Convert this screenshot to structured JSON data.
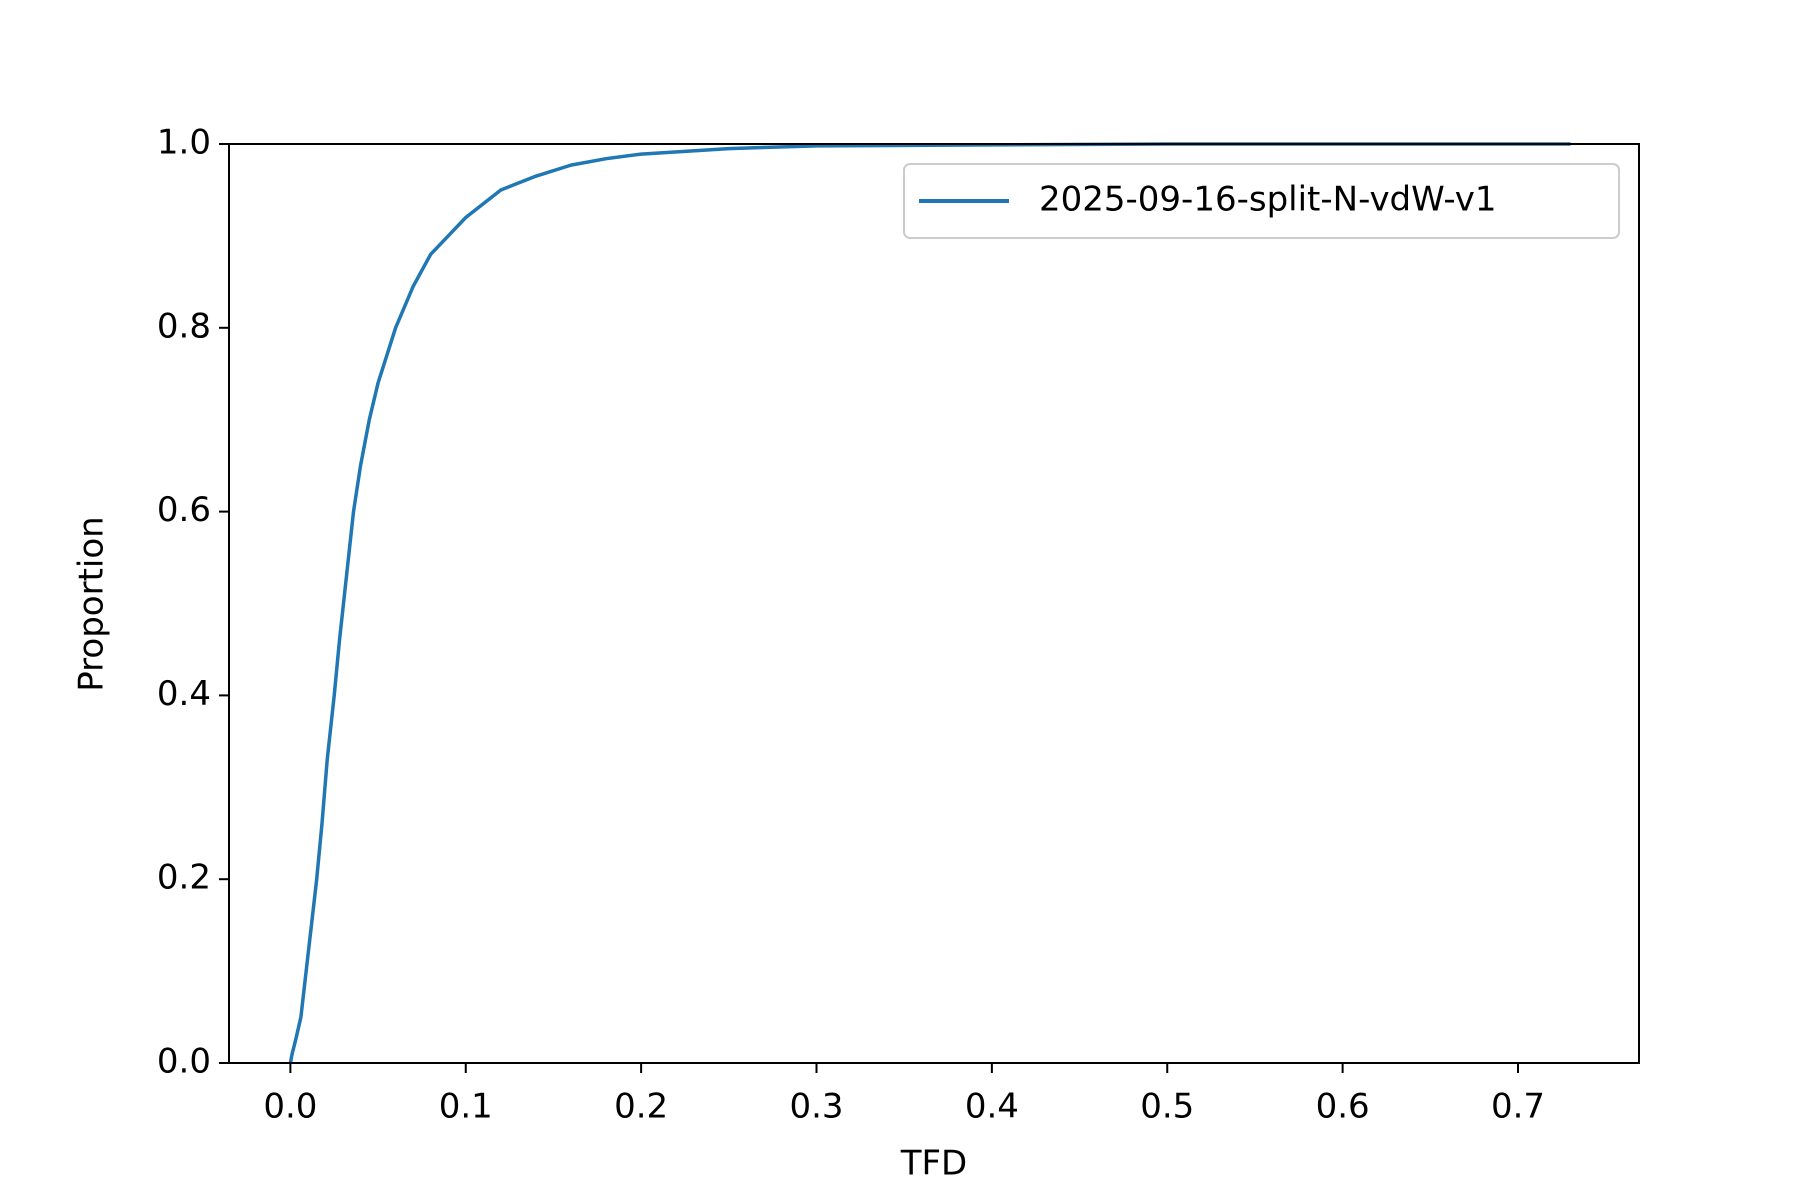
{
  "chart_data": {
    "type": "line",
    "xlabel": "TFD",
    "ylabel": "Proportion",
    "x": [
      0,
      0.001,
      0.003,
      0.006,
      0.009,
      0.012,
      0.015,
      0.018,
      0.021,
      0.025,
      0.028,
      0.032,
      0.036,
      0.04,
      0.045,
      0.05,
      0.06,
      0.07,
      0.08,
      0.09,
      0.1,
      0.12,
      0.14,
      0.16,
      0.18,
      0.2,
      0.25,
      0.3,
      0.4,
      0.5,
      0.73
    ],
    "series": [
      {
        "name": "2025-09-16-split-N-vdW-v1",
        "color": "#1f77b4",
        "values": [
          0,
          0.01,
          0.025,
          0.05,
          0.1,
          0.15,
          0.2,
          0.26,
          0.33,
          0.4,
          0.46,
          0.53,
          0.6,
          0.65,
          0.7,
          0.74,
          0.8,
          0.845,
          0.88,
          0.9,
          0.92,
          0.95,
          0.965,
          0.977,
          0.984,
          0.989,
          0.995,
          0.998,
          0.999,
          1.0,
          1.0
        ]
      }
    ],
    "xlim": [
      -0.035,
      0.769
    ],
    "ylim": [
      0,
      1
    ],
    "xticks": [
      {
        "value": 0,
        "label": "0.0"
      },
      0.1,
      0.2,
      0.3,
      0.4,
      0.5,
      0.6,
      0.7
    ],
    "yticks": [
      {
        "value": 0,
        "label": "0.0"
      },
      0.2,
      0.4,
      0.6,
      0.8,
      {
        "value": 1,
        "label": "1.0"
      }
    ],
    "grid": false,
    "legend": "upper right"
  }
}
